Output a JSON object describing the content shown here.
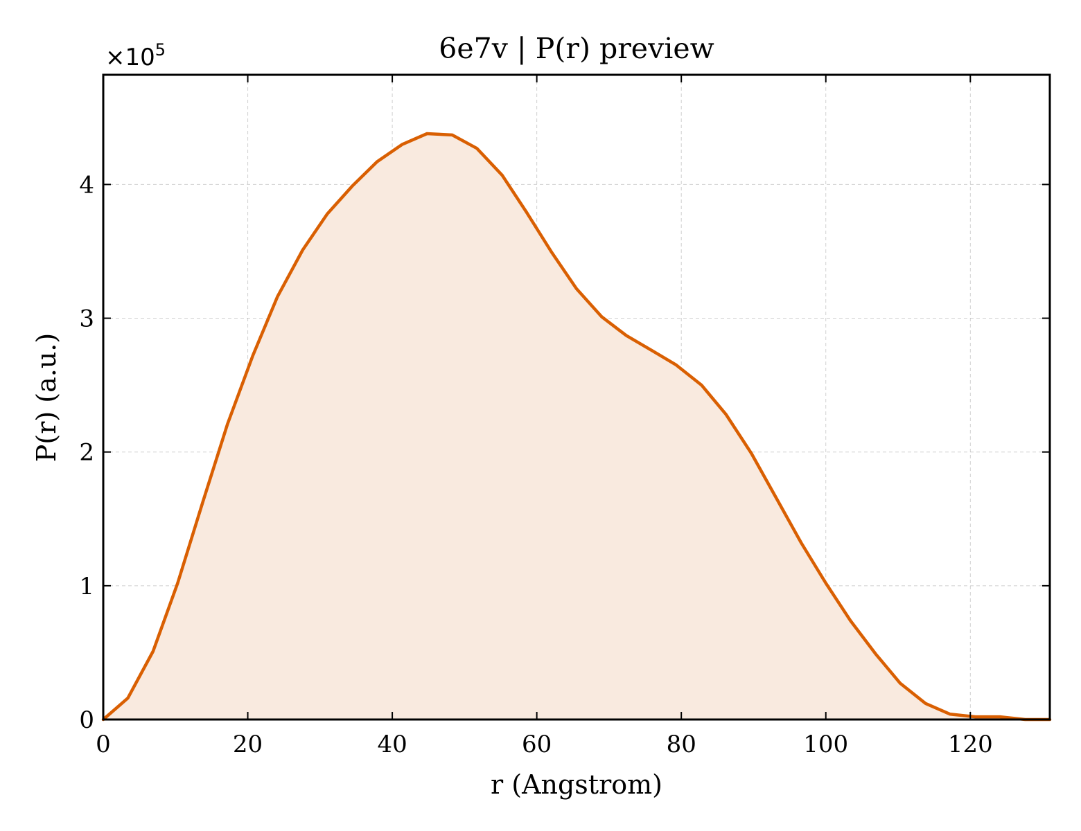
{
  "chart_data": {
    "type": "area",
    "title": "6e7v | P(r) preview",
    "xlabel": "r (Angstrom)",
    "ylabel": "P(r) (a.u.)",
    "y_scale_label": "×10",
    "y_scale_exponent": "5",
    "xlim": [
      0,
      131
    ],
    "ylim": [
      0,
      4.82
    ],
    "x_ticks": [
      0,
      20,
      40,
      60,
      80,
      100,
      120
    ],
    "y_ticks": [
      0,
      1,
      2,
      3,
      4
    ],
    "x_tick_labels": [
      "0",
      "20",
      "40",
      "60",
      "80",
      "100",
      "120"
    ],
    "y_tick_labels": [
      "0",
      "1",
      "2",
      "3",
      "4"
    ],
    "grid": true,
    "line_color": "#d95f02",
    "fill_color": "#f9eadf",
    "series": [
      {
        "x": [
          0,
          3.4,
          6.9,
          10.3,
          13.8,
          17.2,
          20.7,
          24.1,
          27.6,
          31.0,
          34.5,
          37.9,
          41.4,
          44.8,
          48.3,
          51.7,
          55.2,
          58.6,
          62.1,
          65.5,
          69.0,
          72.4,
          75.9,
          79.3,
          82.8,
          86.2,
          89.7,
          93.1,
          96.6,
          100.0,
          103.4,
          106.9,
          110.3,
          113.8,
          117.2,
          120.7,
          124.1,
          127.6,
          131.0
        ],
        "values": [
          0.0,
          0.16,
          0.51,
          1.02,
          1.63,
          2.21,
          2.72,
          3.16,
          3.51,
          3.78,
          3.99,
          4.17,
          4.3,
          4.38,
          4.37,
          4.27,
          4.07,
          3.79,
          3.49,
          3.22,
          3.01,
          2.87,
          2.76,
          2.65,
          2.5,
          2.28,
          1.99,
          1.66,
          1.32,
          1.02,
          0.74,
          0.49,
          0.27,
          0.12,
          0.04,
          0.02,
          0.02,
          0.0,
          0.0
        ]
      }
    ]
  }
}
